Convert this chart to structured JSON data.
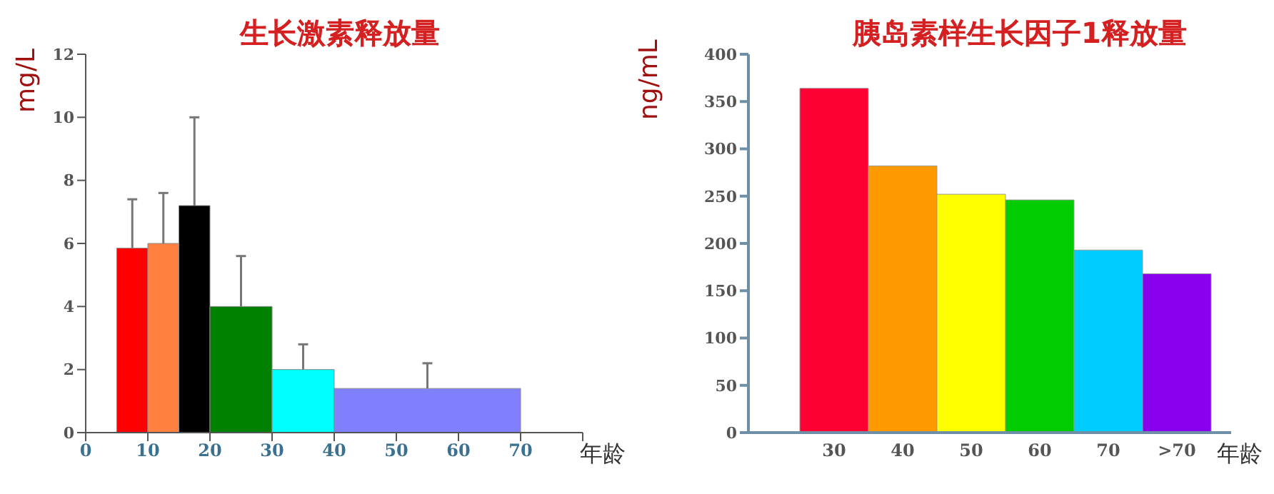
{
  "chart_data": [
    {
      "type": "histogram",
      "title": "生长激素释放量",
      "xlabel": "年龄",
      "ylabel": "mg/L",
      "bins": [
        5,
        10,
        15,
        20,
        30,
        40,
        70
      ],
      "values": [
        5.85,
        6.0,
        7.2,
        4.0,
        2.0,
        1.4
      ],
      "errors": [
        [
          5.85,
          7.4
        ],
        [
          6.0,
          7.6
        ],
        [
          7.2,
          10.0
        ],
        [
          4.0,
          5.6
        ],
        [
          2.0,
          2.8
        ],
        [
          1.4,
          2.2
        ]
      ],
      "colors": [
        "#ff0000",
        "#ff8040",
        "#000000",
        "#008000",
        "#00ffff",
        "#8080ff"
      ],
      "xlim": [
        0,
        80
      ],
      "xticks": [
        0,
        10,
        20,
        30,
        40,
        50,
        60,
        70,
        {
          "value": 80,
          "label": null
        }
      ],
      "ylim": [
        0,
        12
      ],
      "yticks": [
        0,
        2,
        4,
        6,
        8,
        10,
        12
      ],
      "grid": false,
      "legend": false
    },
    {
      "type": "bar",
      "title": "胰岛素样生长因子1释放量",
      "xlabel": "年龄",
      "ylabel": "ng/mL",
      "categories": [
        "30",
        "40",
        "50",
        "60",
        "70",
        ">70"
      ],
      "values": [
        364,
        282,
        252,
        246,
        193,
        168
      ],
      "colors": [
        "#ff0033",
        "#ff9900",
        "#ffff00",
        "#00cc00",
        "#00ccff",
        "#8800ee"
      ],
      "ylim": [
        0,
        400
      ],
      "yticks": [
        0,
        50,
        100,
        150,
        200,
        250,
        300,
        350,
        400
      ],
      "grid": false,
      "legend": false
    }
  ]
}
